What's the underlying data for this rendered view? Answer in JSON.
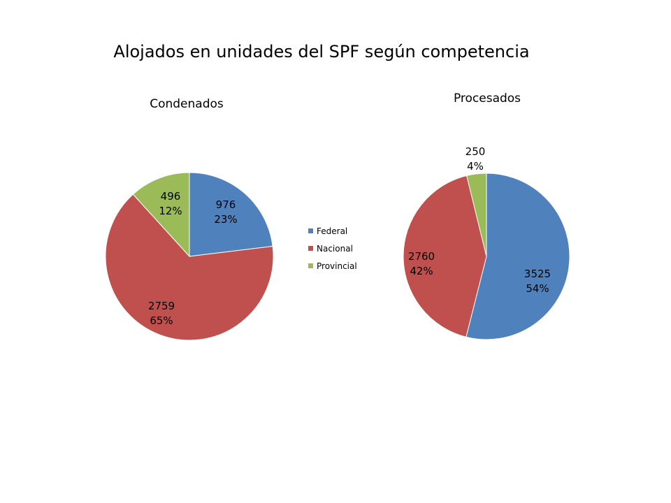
{
  "title": "Alojados en unidades del SPF según competencia",
  "colors": {
    "Federal": "#4f81bd",
    "Nacional": "#c0504d",
    "Provincial": "#9bbb59"
  },
  "legend": [
    "Federal",
    "Nacional",
    "Provincial"
  ],
  "chart_data": [
    {
      "type": "pie",
      "title": "Condenados",
      "labels": [
        "Federal",
        "Nacional",
        "Provincial"
      ],
      "values": [
        976,
        2759,
        496
      ],
      "percent_labels": [
        "23%",
        "65%",
        "12%"
      ]
    },
    {
      "type": "pie",
      "title": "Procesados",
      "labels": [
        "Federal",
        "Nacional",
        "Provincial"
      ],
      "values": [
        3525,
        2760,
        250
      ],
      "percent_labels": [
        "54%",
        "42%",
        "4%"
      ]
    }
  ]
}
